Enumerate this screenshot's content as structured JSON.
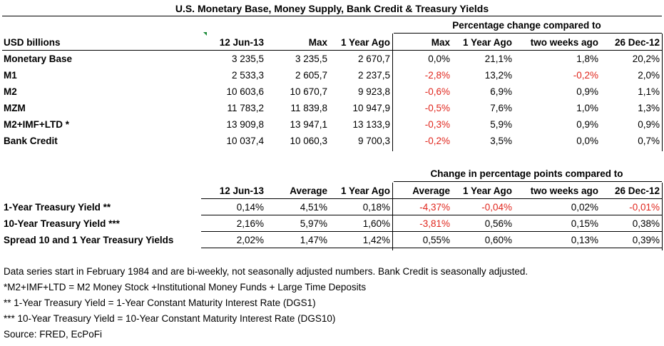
{
  "title": "U.S. Monetary Base, Money Supply, Bank Credit & Treasury Yields",
  "table1": {
    "group_header": "Percentage change compared to",
    "row_label_header": "USD billions",
    "columns": [
      "12 Jun-13",
      "Max",
      "1 Year Ago",
      "Max",
      "1 Year Ago",
      "two weeks ago",
      "26 Dec-12"
    ],
    "rows": [
      {
        "label": "Monetary Base",
        "values": [
          "3 235,5",
          "3 235,5",
          "2 670,7",
          "0,0%",
          "21,1%",
          "1,8%",
          "20,2%"
        ],
        "neg": [
          false,
          false,
          false,
          false,
          false,
          false,
          false
        ]
      },
      {
        "label": "M1",
        "values": [
          "2 533,3",
          "2 605,7",
          "2 237,5",
          "-2,8%",
          "13,2%",
          "-0,2%",
          "2,0%"
        ],
        "neg": [
          false,
          false,
          false,
          true,
          false,
          true,
          false
        ]
      },
      {
        "label": "M2",
        "values": [
          "10 603,6",
          "10 670,7",
          "9 923,8",
          "-0,6%",
          "6,9%",
          "0,9%",
          "1,1%"
        ],
        "neg": [
          false,
          false,
          false,
          true,
          false,
          false,
          false
        ]
      },
      {
        "label": "MZM",
        "values": [
          "11 783,2",
          "11 839,8",
          "10 947,9",
          "-0,5%",
          "7,6%",
          "1,0%",
          "1,3%"
        ],
        "neg": [
          false,
          false,
          false,
          true,
          false,
          false,
          false
        ]
      },
      {
        "label": "M2+IMF+LTD *",
        "values": [
          "13 909,8",
          "13 947,1",
          "13 133,9",
          "-0,3%",
          "5,9%",
          "0,9%",
          "0,9%"
        ],
        "neg": [
          false,
          false,
          false,
          true,
          false,
          false,
          false
        ]
      },
      {
        "label": "Bank Credit",
        "values": [
          "10 037,4",
          "10 060,3",
          "9 700,3",
          "-0,2%",
          "3,5%",
          "0,0%",
          "0,7%"
        ],
        "neg": [
          false,
          false,
          false,
          true,
          false,
          false,
          false
        ]
      }
    ]
  },
  "table2": {
    "group_header": "Change in percentage points compared to",
    "columns": [
      "12 Jun-13",
      "Average",
      "1 Year Ago",
      "Average",
      "1 Year Ago",
      "two weeks ago",
      "26 Dec-12"
    ],
    "rows": [
      {
        "label": "1-Year Treasury Yield **",
        "values": [
          "0,14%",
          "4,51%",
          "0,18%",
          "-4,37%",
          "-0,04%",
          "0,02%",
          "-0,01%"
        ],
        "neg": [
          false,
          false,
          false,
          true,
          true,
          false,
          true
        ]
      },
      {
        "label": "10-Year Treasury Yield ***",
        "values": [
          "2,16%",
          "5,97%",
          "1,60%",
          "-3,81%",
          "0,56%",
          "0,15%",
          "0,38%"
        ],
        "neg": [
          false,
          false,
          false,
          true,
          false,
          false,
          false
        ]
      },
      {
        "label": "Spread 10 and 1 Year Treasury Yields",
        "values": [
          "2,02%",
          "1,47%",
          "1,42%",
          "0,55%",
          "0,60%",
          "0,13%",
          "0,39%"
        ],
        "neg": [
          false,
          false,
          false,
          false,
          false,
          false,
          false
        ]
      }
    ]
  },
  "notes": [
    "Data series start in February 1984 and are bi-weekly, not seasonally adjusted numbers. Bank Credit is seasonally adjusted.",
    "*M2+IMF+LTD =  M2 Money Stock +Institutional Money Funds + Large Time Deposits",
    "**  1-Year Treasury Yield = 1-Year Constant Maturity Interest Rate (DGS1)",
    "*** 10-Year Treasury Yield = 10-Year Constant Maturity Interest Rate (DGS10)",
    "Source: FRED, EcPoFi"
  ],
  "colors": {
    "negative": "#e0261d",
    "comment_marker": "#1e8c3a"
  }
}
